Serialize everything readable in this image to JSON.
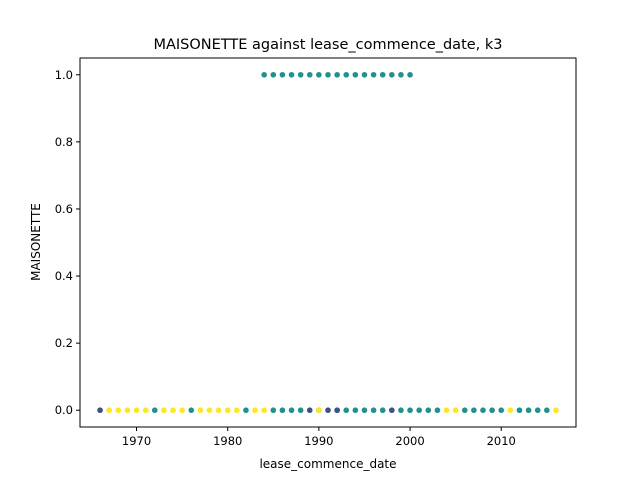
{
  "chart_data": {
    "type": "scatter",
    "title": "MAISONETTE against lease_commence_date, k3",
    "xlabel": "lease_commence_date",
    "ylabel": "MAISONETTE",
    "xlim": [
      1963.8,
      2018.2
    ],
    "ylim": [
      -0.05,
      1.05
    ],
    "x_ticks": [
      1970,
      1980,
      1990,
      2000,
      2010
    ],
    "x_tick_labels": [
      "1970",
      "1980",
      "1990",
      "2000",
      "2010"
    ],
    "y_ticks": [
      0.0,
      0.2,
      0.4,
      0.6,
      0.8,
      1.0
    ],
    "y_tick_labels": [
      "0.0",
      "0.2",
      "0.4",
      "0.6",
      "0.8",
      "1.0"
    ],
    "grid": false,
    "legend": "none",
    "colors": {
      "teal": "#21918c",
      "yellow": "#fde725",
      "navy": "#3b528b"
    },
    "series": [
      {
        "color": "#21918c",
        "points": [
          [
            1984,
            1
          ],
          [
            1985,
            1
          ],
          [
            1986,
            1
          ],
          [
            1987,
            1
          ],
          [
            1988,
            1
          ],
          [
            1989,
            1
          ],
          [
            1990,
            1
          ],
          [
            1991,
            1
          ],
          [
            1992,
            1
          ],
          [
            1993,
            1
          ],
          [
            1994,
            1
          ],
          [
            1995,
            1
          ],
          [
            1996,
            1
          ],
          [
            1997,
            1
          ],
          [
            1998,
            1
          ],
          [
            1999,
            1
          ],
          [
            2000,
            1
          ],
          [
            1972,
            0
          ],
          [
            1976,
            0
          ],
          [
            1982,
            0
          ],
          [
            1985,
            0
          ],
          [
            1986,
            0
          ],
          [
            1987,
            0
          ],
          [
            1988,
            0
          ],
          [
            1990,
            0
          ],
          [
            1992,
            0
          ],
          [
            1993,
            0
          ],
          [
            1994,
            0
          ],
          [
            1995,
            0
          ],
          [
            1996,
            0
          ],
          [
            1997,
            0
          ],
          [
            1999,
            0
          ],
          [
            2000,
            0
          ],
          [
            2001,
            0
          ],
          [
            2002,
            0
          ],
          [
            2003,
            0
          ],
          [
            2006,
            0
          ],
          [
            2007,
            0
          ],
          [
            2008,
            0
          ],
          [
            2009,
            0
          ],
          [
            2010,
            0
          ],
          [
            2012,
            0
          ],
          [
            2013,
            0
          ],
          [
            2014,
            0
          ],
          [
            2015,
            0
          ]
        ]
      },
      {
        "color": "#fde725",
        "points": [
          [
            1966,
            0
          ],
          [
            1967,
            0
          ],
          [
            1968,
            0
          ],
          [
            1969,
            0
          ],
          [
            1970,
            0
          ],
          [
            1971,
            0
          ],
          [
            1973,
            0
          ],
          [
            1974,
            0
          ],
          [
            1975,
            0
          ],
          [
            1977,
            0
          ],
          [
            1978,
            0
          ],
          [
            1979,
            0
          ],
          [
            1980,
            0
          ],
          [
            1981,
            0
          ],
          [
            1983,
            0
          ],
          [
            1984,
            0
          ],
          [
            1989,
            0
          ],
          [
            1990,
            0
          ],
          [
            1991,
            0
          ],
          [
            1998,
            0
          ],
          [
            2004,
            0
          ],
          [
            2005,
            0
          ],
          [
            2011,
            0
          ],
          [
            2016,
            0
          ]
        ]
      },
      {
        "color": "#3b528b",
        "points": [
          [
            1966,
            0
          ],
          [
            1989,
            0
          ],
          [
            1991,
            0
          ],
          [
            1992,
            0
          ],
          [
            1998,
            0
          ]
        ]
      }
    ]
  }
}
